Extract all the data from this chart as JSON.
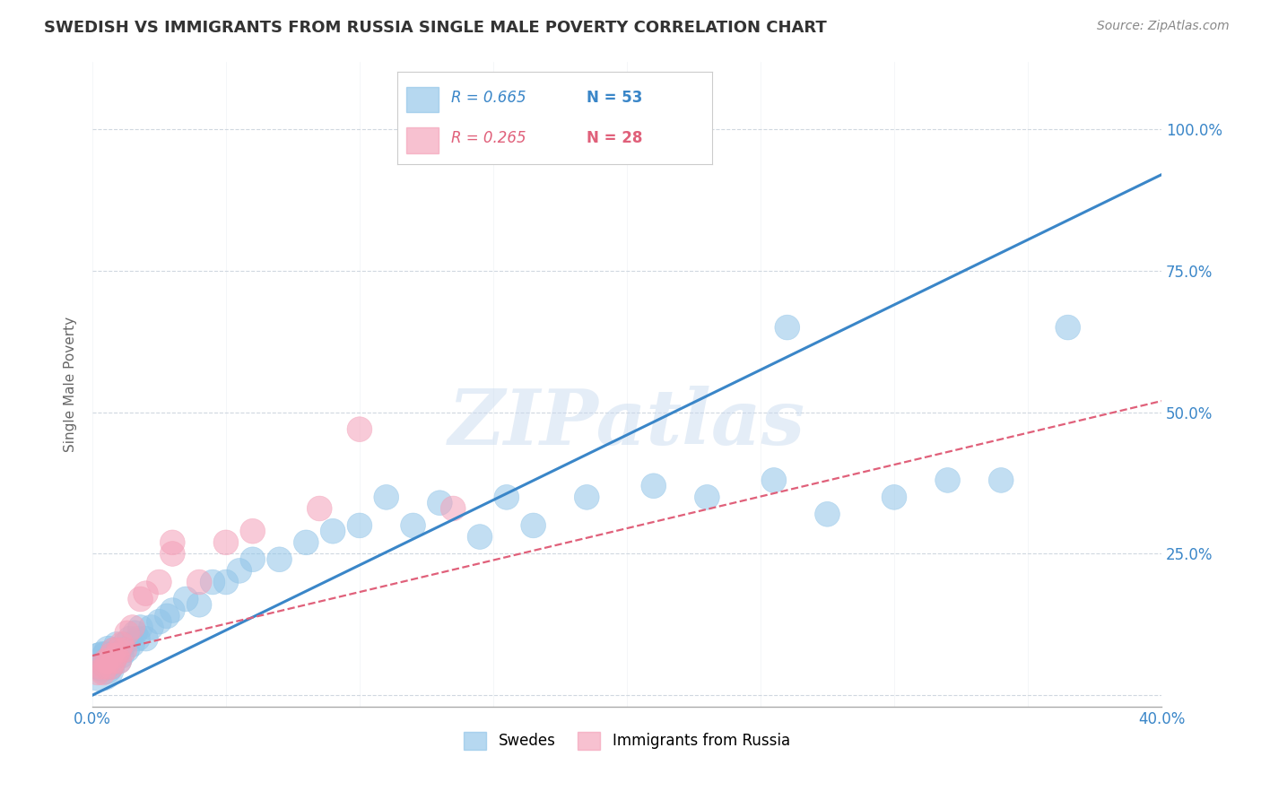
{
  "title": "SWEDISH VS IMMIGRANTS FROM RUSSIA SINGLE MALE POVERTY CORRELATION CHART",
  "source": "Source: ZipAtlas.com",
  "ylabel": "Single Male Poverty",
  "x_min": 0.0,
  "x_max": 0.4,
  "y_min": -0.02,
  "y_max": 1.12,
  "x_ticks": [
    0.0,
    0.05,
    0.1,
    0.15,
    0.2,
    0.25,
    0.3,
    0.35,
    0.4
  ],
  "y_ticks": [
    0.0,
    0.25,
    0.5,
    0.75,
    1.0
  ],
  "y_tick_labels": [
    "",
    "25.0%",
    "50.0%",
    "75.0%",
    "100.0%"
  ],
  "legend_blue_label": "Swedes",
  "legend_pink_label": "Immigrants from Russia",
  "R_blue": 0.665,
  "N_blue": 53,
  "R_pink": 0.265,
  "N_pink": 28,
  "blue_color": "#90c4e8",
  "blue_line_color": "#3a86c8",
  "pink_color": "#f4a0b8",
  "pink_line_color": "#e0607a",
  "watermark_text": "ZIPatlas",
  "grid_color": "#d0d8e0",
  "swedes_x": [
    0.003,
    0.004,
    0.005,
    0.005,
    0.006,
    0.006,
    0.007,
    0.007,
    0.008,
    0.008,
    0.009,
    0.009,
    0.01,
    0.01,
    0.011,
    0.012,
    0.013,
    0.014,
    0.015,
    0.016,
    0.017,
    0.018,
    0.02,
    0.022,
    0.025,
    0.028,
    0.03,
    0.035,
    0.04,
    0.045,
    0.05,
    0.055,
    0.06,
    0.07,
    0.08,
    0.09,
    0.1,
    0.11,
    0.12,
    0.13,
    0.145,
    0.155,
    0.165,
    0.185,
    0.21,
    0.23,
    0.255,
    0.275,
    0.3,
    0.32,
    0.26,
    0.34,
    0.365
  ],
  "swedes_y": [
    0.05,
    0.06,
    0.05,
    0.07,
    0.06,
    0.08,
    0.05,
    0.07,
    0.06,
    0.08,
    0.07,
    0.09,
    0.06,
    0.08,
    0.07,
    0.09,
    0.08,
    0.1,
    0.09,
    0.11,
    0.1,
    0.12,
    0.1,
    0.12,
    0.13,
    0.14,
    0.15,
    0.17,
    0.16,
    0.2,
    0.2,
    0.22,
    0.24,
    0.24,
    0.27,
    0.29,
    0.3,
    0.35,
    0.3,
    0.34,
    0.28,
    0.35,
    0.3,
    0.35,
    0.37,
    0.35,
    0.38,
    0.32,
    0.35,
    0.38,
    0.65,
    0.38,
    0.65
  ],
  "swedes_size": [
    300,
    200,
    150,
    100,
    100,
    100,
    80,
    80,
    80,
    80,
    80,
    80,
    80,
    80,
    80,
    80,
    80,
    80,
    80,
    80,
    80,
    80,
    80,
    80,
    80,
    80,
    80,
    80,
    80,
    80,
    80,
    80,
    80,
    80,
    80,
    80,
    80,
    80,
    80,
    80,
    80,
    80,
    80,
    80,
    80,
    80,
    80,
    80,
    80,
    80,
    80,
    80,
    80
  ],
  "russia_x": [
    0.002,
    0.003,
    0.004,
    0.005,
    0.005,
    0.006,
    0.007,
    0.007,
    0.008,
    0.008,
    0.009,
    0.01,
    0.01,
    0.011,
    0.012,
    0.013,
    0.015,
    0.018,
    0.02,
    0.025,
    0.03,
    0.03,
    0.04,
    0.05,
    0.06,
    0.085,
    0.1,
    0.135
  ],
  "russia_y": [
    0.04,
    0.05,
    0.04,
    0.05,
    0.06,
    0.06,
    0.05,
    0.07,
    0.06,
    0.08,
    0.07,
    0.06,
    0.08,
    0.09,
    0.08,
    0.11,
    0.12,
    0.17,
    0.18,
    0.2,
    0.25,
    0.27,
    0.2,
    0.27,
    0.29,
    0.33,
    0.47,
    0.33
  ],
  "russia_size": [
    80,
    80,
    80,
    80,
    80,
    80,
    80,
    80,
    80,
    80,
    80,
    80,
    80,
    80,
    80,
    80,
    80,
    80,
    80,
    80,
    80,
    80,
    80,
    80,
    80,
    80,
    80,
    80
  ],
  "blue_trend_x": [
    0.0,
    0.4
  ],
  "blue_trend_y": [
    0.0,
    0.92
  ],
  "pink_trend_x": [
    0.0,
    0.4
  ],
  "pink_trend_y": [
    0.07,
    0.52
  ]
}
